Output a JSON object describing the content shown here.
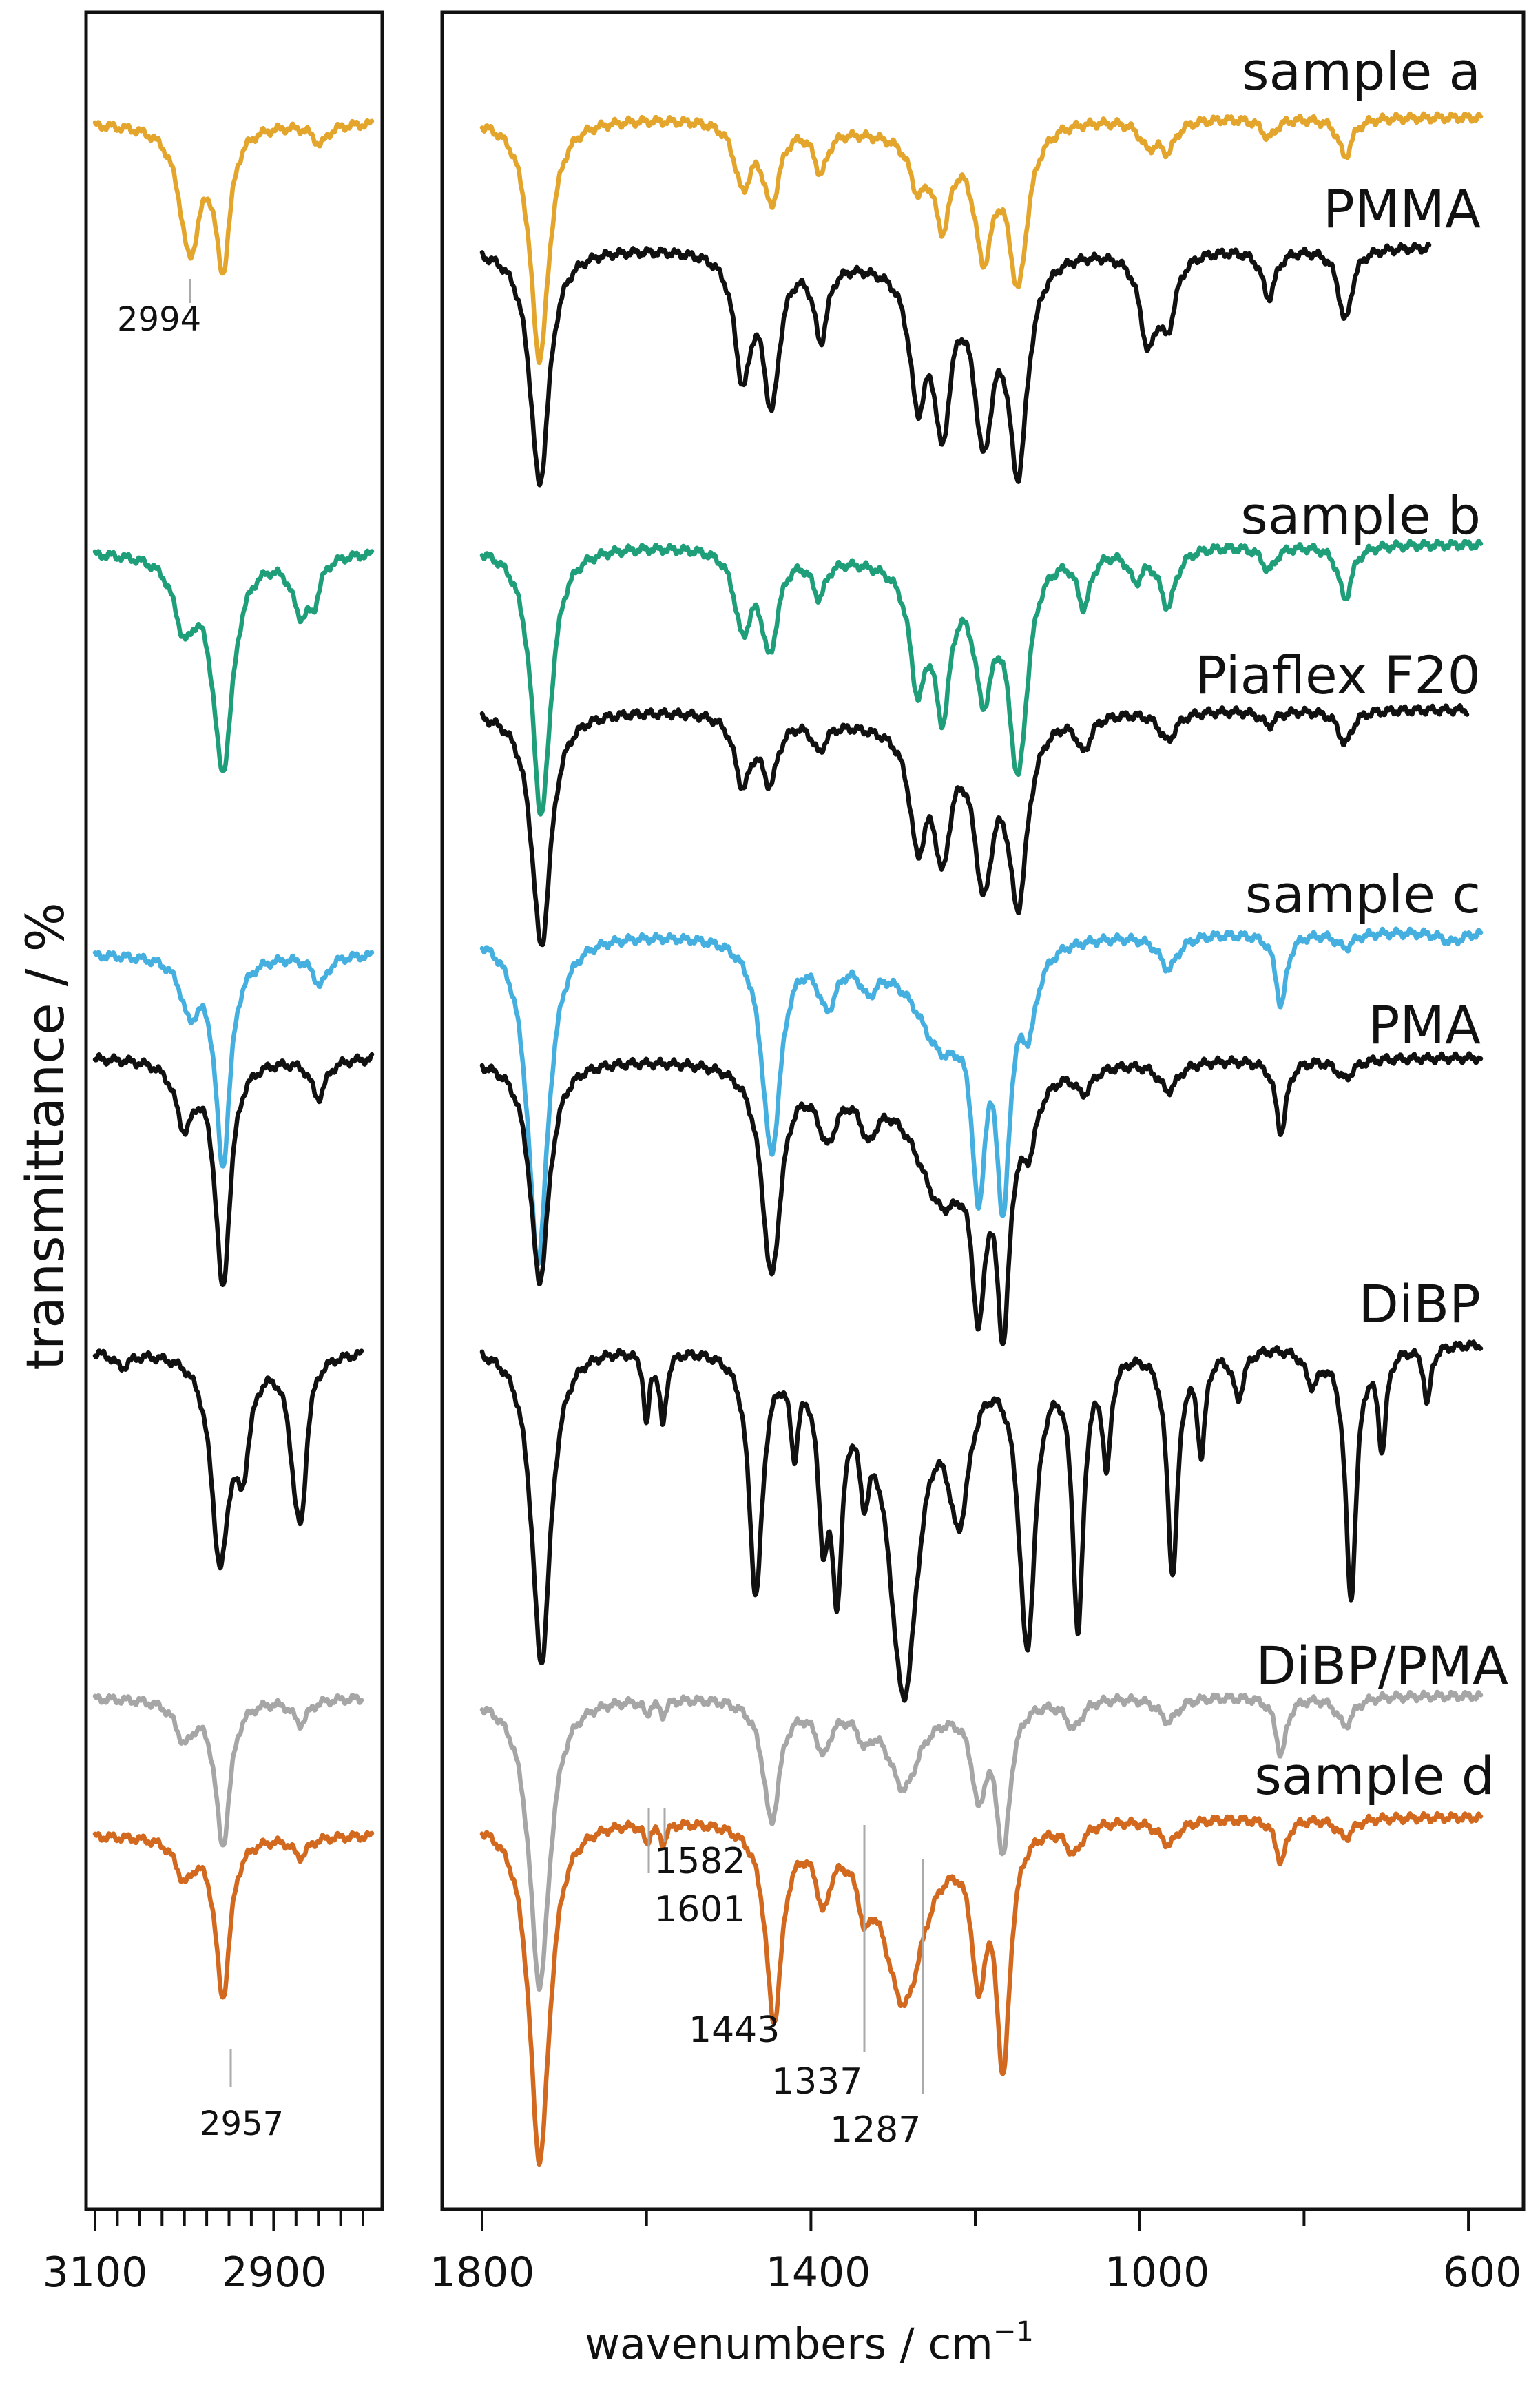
{
  "chart_data": {
    "type": "line",
    "ylabel": "transmittance / %",
    "xlabel": "wavenumbers / cm⁻¹",
    "xlabel_superscript": "−1",
    "colors": {
      "sample a": "#e3a52b",
      "PMMA": "#111111",
      "sample b": "#1f9e7a",
      "Piaflex F20": "#111111",
      "sample c": "#45b0e0",
      "PMA": "#111111",
      "DiBP": "#111111",
      "DiBP/PMA": "#a6a6a6",
      "sample d": "#d2691e"
    },
    "panels": [
      {
        "id": "left",
        "xlim": [
          3100,
          2780
        ],
        "ticks": [
          3100,
          2900
        ],
        "peak_labels": [
          "2994",
          "2957"
        ]
      },
      {
        "id": "right",
        "xlim": [
          1820,
          560
        ],
        "ticks": [
          1800,
          1400,
          1000,
          600
        ],
        "minor_ticks": [
          1600,
          1200,
          800
        ],
        "peak_labels": [
          "1582",
          "1601",
          "1443",
          "1337",
          "1287"
        ]
      }
    ],
    "series": [
      {
        "name": "sample a",
        "offset": 0.0
      },
      {
        "name": "PMMA",
        "offset": 1.0
      },
      {
        "name": "sample b",
        "offset": 2.0
      },
      {
        "name": "Piaflex F20",
        "offset": 3.0
      },
      {
        "name": "sample c",
        "offset": 4.0
      },
      {
        "name": "PMA",
        "offset": 5.0
      },
      {
        "name": "DiBP",
        "offset": 6.0
      },
      {
        "name": "DiBP/PMA",
        "offset": 7.0
      },
      {
        "name": "sample d",
        "offset": 8.0
      }
    ],
    "peaks": {
      "sample a": {
        "left": [
          [
            2994,
            2.6,
            14
          ],
          [
            2957,
            2.8,
            10
          ],
          [
            2848,
            0.4,
            10
          ]
        ],
        "right": [
          [
            1730,
            5.0,
            14
          ],
          [
            1483,
            1.3,
            12
          ],
          [
            1448,
            1.6,
            12
          ],
          [
            1388,
            0.9,
            10
          ],
          [
            1270,
            1.0,
            12
          ],
          [
            1240,
            1.8,
            12
          ],
          [
            1190,
            2.5,
            14
          ],
          [
            1148,
            3.2,
            14
          ],
          [
            990,
            0.5,
            12
          ],
          [
            966,
            0.6,
            12
          ],
          [
            843,
            0.4,
            10
          ],
          [
            750,
            0.8,
            10
          ]
        ]
      },
      "PMMA": {
        "left": [],
        "right": [
          [
            1730,
            4.9,
            14
          ],
          [
            1483,
            2.5,
            12
          ],
          [
            1448,
            3.0,
            12
          ],
          [
            1388,
            1.6,
            10
          ],
          [
            1270,
            2.6,
            12
          ],
          [
            1240,
            3.2,
            12
          ],
          [
            1190,
            3.5,
            14
          ],
          [
            1148,
            4.3,
            14
          ],
          [
            990,
            1.8,
            12
          ],
          [
            966,
            1.4,
            12
          ],
          [
            843,
            1.0,
            10
          ],
          [
            750,
            1.5,
            10
          ]
        ]
      },
      "sample b": {
        "left": [
          [
            3000,
            1.4,
            14
          ],
          [
            2957,
            4.4,
            14
          ],
          [
            2870,
            1.1,
            12
          ],
          [
            2855,
            0.7,
            8
          ]
        ],
        "right": [
          [
            1728,
            5.6,
            14
          ],
          [
            1483,
            1.6,
            12
          ],
          [
            1450,
            2.0,
            12
          ],
          [
            1390,
            0.8,
            10
          ],
          [
            1270,
            2.4,
            12
          ],
          [
            1240,
            2.9,
            12
          ],
          [
            1190,
            2.6,
            14
          ],
          [
            1148,
            4.4,
            14
          ],
          [
            1068,
            1.1,
            10
          ],
          [
            1005,
            0.6,
            10
          ],
          [
            966,
            1.2,
            12
          ],
          [
            843,
            0.5,
            10
          ],
          [
            750,
            1.1,
            10
          ]
        ]
      },
      "Piaflex F20": {
        "left": [],
        "right": [
          [
            1728,
            4.9,
            14
          ],
          [
            1483,
            1.4,
            12
          ],
          [
            1450,
            1.3,
            12
          ],
          [
            1390,
            0.6,
            10
          ],
          [
            1270,
            2.3,
            12
          ],
          [
            1240,
            2.5,
            12
          ],
          [
            1190,
            3.2,
            14
          ],
          [
            1148,
            3.7,
            14
          ],
          [
            1068,
            0.7,
            10
          ],
          [
            966,
            0.6,
            12
          ],
          [
            843,
            0.3,
            10
          ],
          [
            750,
            0.7,
            10
          ]
        ]
      },
      "sample c": {
        "left": [
          [
            2994,
            1.1,
            12
          ],
          [
            2957,
            4.3,
            10
          ],
          [
            2848,
            0.6,
            10
          ]
        ],
        "right": [
          [
            1732,
            6.8,
            15
          ],
          [
            1448,
            4.4,
            14
          ],
          [
            1380,
            1.1,
            14
          ],
          [
            1330,
            0.6,
            12
          ],
          [
            1240,
            2.0,
            40
          ],
          [
            1196,
            4.2,
            10
          ],
          [
            1166,
            4.8,
            10
          ],
          [
            1135,
            1.4,
            12
          ],
          [
            965,
            0.7,
            14
          ],
          [
            828,
            1.5,
            8
          ],
          [
            750,
            0.3,
            12
          ],
          [
            620,
            0.2,
            16
          ]
        ]
      },
      "PMA": {
        "left": [
          [
            3000,
            1.3,
            12
          ],
          [
            2957,
            4.7,
            10
          ],
          [
            2850,
            0.8,
            10
          ]
        ],
        "right": [
          [
            1730,
            4.6,
            14
          ],
          [
            1448,
            4.3,
            14
          ],
          [
            1380,
            1.2,
            14
          ],
          [
            1330,
            0.9,
            12
          ],
          [
            1240,
            2.6,
            40
          ],
          [
            1196,
            3.8,
            10
          ],
          [
            1166,
            4.7,
            10
          ],
          [
            1135,
            1.2,
            12
          ],
          [
            1068,
            0.5,
            12
          ],
          [
            965,
            0.6,
            14
          ],
          [
            828,
            1.5,
            8
          ],
          [
            750,
            0.4,
            12
          ]
        ]
      },
      "DiBP": {
        "left": [
          [
            3070,
            0.3,
            10
          ],
          [
            2960,
            4.2,
            12
          ],
          [
            2935,
            2.0,
            10
          ],
          [
            2874,
            2.5,
            10
          ],
          [
            2868,
            1.5,
            6
          ]
        ],
        "right": [
          [
            1728,
            6.6,
            14
          ],
          [
            1600,
            1.5,
            4
          ],
          [
            1580,
            1.5,
            5
          ],
          [
            1467,
            5.0,
            10
          ],
          [
            1420,
            1.7,
            6
          ],
          [
            1385,
            3.1,
            8
          ],
          [
            1368,
            4.2,
            8
          ],
          [
            1335,
            1.8,
            8
          ],
          [
            1287,
            7.0,
            22
          ],
          [
            1220,
            3.0,
            16
          ],
          [
            1137,
            6.0,
            12
          ],
          [
            1075,
            5.6,
            8
          ],
          [
            1040,
            2.2,
            6
          ],
          [
            960,
            4.6,
            8
          ],
          [
            925,
            2.0,
            6
          ],
          [
            880,
            1.0,
            8
          ],
          [
            790,
            0.7,
            10
          ],
          [
            743,
            5.2,
            8
          ],
          [
            705,
            2.0,
            6
          ],
          [
            650,
            1.2,
            5
          ]
        ]
      },
      "DiBP/PMA": {
        "left": [
          [
            3000,
            0.8,
            12
          ],
          [
            2957,
            3.0,
            10
          ],
          [
            2870,
            0.5,
            10
          ]
        ],
        "right": [
          [
            1730,
            6.0,
            15
          ],
          [
            1600,
            0.3,
            4
          ],
          [
            1580,
            0.3,
            5
          ],
          [
            1448,
            2.5,
            12
          ],
          [
            1385,
            0.9,
            10
          ],
          [
            1335,
            0.5,
            8
          ],
          [
            1287,
            1.6,
            22
          ],
          [
            1196,
            1.8,
            10
          ],
          [
            1166,
            3.0,
            10
          ],
          [
            1080,
            0.6,
            12
          ],
          [
            965,
            0.5,
            14
          ],
          [
            828,
            1.2,
            8
          ],
          [
            750,
            0.6,
            12
          ]
        ]
      },
      "sample d": {
        "left": [
          [
            3000,
            0.8,
            12
          ],
          [
            2957,
            3.3,
            10
          ],
          [
            2870,
            0.4,
            10
          ]
        ],
        "right": [
          [
            1730,
            7.1,
            15
          ],
          [
            1600,
            0.4,
            4
          ],
          [
            1580,
            0.4,
            5
          ],
          [
            1445,
            4.0,
            12
          ],
          [
            1385,
            1.3,
            10
          ],
          [
            1335,
            1.0,
            8
          ],
          [
            1287,
            3.5,
            30
          ],
          [
            1196,
            2.8,
            10
          ],
          [
            1166,
            4.8,
            10
          ],
          [
            1080,
            0.6,
            12
          ],
          [
            965,
            0.5,
            14
          ],
          [
            828,
            0.9,
            8
          ],
          [
            750,
            0.4,
            12
          ]
        ]
      }
    },
    "left_panel_shown": [
      "sample a",
      "sample b",
      "sample c",
      "PMA",
      "DiBP",
      "DiBP/PMA",
      "sample d"
    ]
  }
}
